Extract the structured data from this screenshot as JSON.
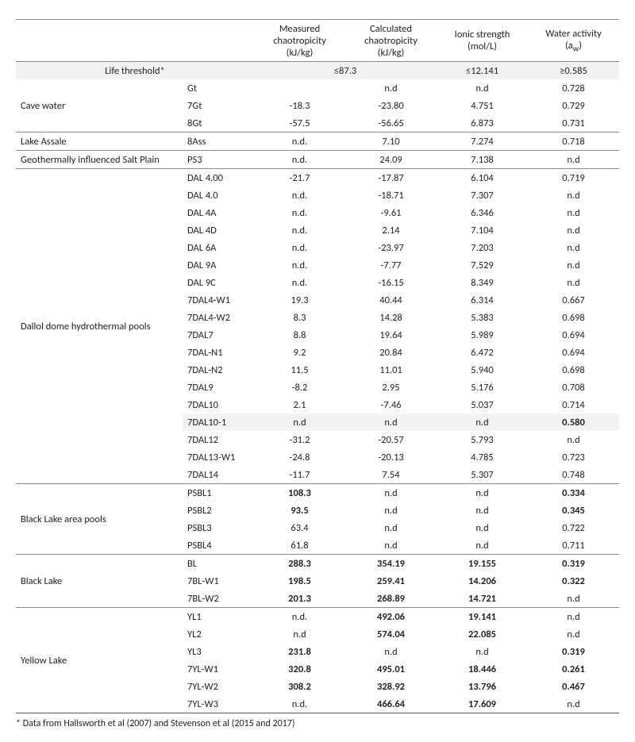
{
  "columns": [
    {
      "label_line1": "Measured",
      "label_line2": "chaotropicity",
      "label_line3": "(kJ/kg)"
    },
    {
      "label_line1": "Calculated",
      "label_line2": "chaotropicity",
      "label_line3": "(kJ/kg)"
    },
    {
      "label_line1": "Ionic strength",
      "label_line2": "(mol/L)",
      "label_line3": ""
    },
    {
      "label_line1": "Water activity",
      "label_line2": "(a",
      "label_line3": "",
      "sub": "w",
      "tail": ")"
    }
  ],
  "threshold": {
    "label": "Life threshold*",
    "chaotropicity": "≤87.3",
    "ionic": "≤12.141",
    "aw": "≥0.585"
  },
  "groups": [
    {
      "site": "Cave water",
      "rows": [
        {
          "s": "Gt",
          "v": [
            "",
            "n.d",
            "n.d",
            "0.728"
          ]
        },
        {
          "s": "7Gt",
          "v": [
            "-18.3",
            "-23.80",
            "4.751",
            "0.729"
          ]
        },
        {
          "s": "8Gt",
          "v": [
            "-57.5",
            "-56.65",
            "6.873",
            "0.731"
          ]
        }
      ]
    },
    {
      "site": "Lake Assale",
      "rows": [
        {
          "s": "8Ass",
          "v": [
            "n.d.",
            "7.10",
            "7.274",
            "0.718"
          ]
        }
      ]
    },
    {
      "site": "Geothermally influenced Salt Plain",
      "rows": [
        {
          "s": "PS3",
          "v": [
            "n.d.",
            "24.09",
            "7.138",
            "n.d"
          ]
        }
      ]
    },
    {
      "site": "Dallol dome hydrothermal pools",
      "rows": [
        {
          "s": "DAL 4.00",
          "v": [
            "-21.7",
            "-17.87",
            "6.104",
            "0.719"
          ]
        },
        {
          "s": "DAL 4.0",
          "v": [
            "n.d.",
            "-18.71",
            "7.307",
            "n.d"
          ]
        },
        {
          "s": "DAL 4A",
          "v": [
            "n.d.",
            "-9.61",
            "6.346",
            "n.d"
          ]
        },
        {
          "s": "DAL 4D",
          "v": [
            "n.d.",
            "2.14",
            "7.104",
            "n.d"
          ]
        },
        {
          "s": "DAL 6A",
          "v": [
            "n.d.",
            "-23.97",
            "7.203",
            "n.d"
          ]
        },
        {
          "s": "DAL 9A",
          "v": [
            "n.d.",
            "-7.77",
            "7.529",
            "n.d"
          ]
        },
        {
          "s": "DAL 9C",
          "v": [
            "n.d.",
            "-16.15",
            "8.349",
            "n.d"
          ]
        },
        {
          "s": "7DAL4-W1",
          "v": [
            "19.3",
            "40.44",
            "6.314",
            "0.667"
          ]
        },
        {
          "s": "7DAL4-W2",
          "v": [
            "8.3",
            "14.28",
            "5.383",
            "0.698"
          ]
        },
        {
          "s": "7DAL7",
          "v": [
            "8.8",
            "19.64",
            "5.989",
            "0.694"
          ]
        },
        {
          "s": "7DAL-N1",
          "v": [
            "9.2",
            "20.84",
            "6.472",
            "0.694"
          ]
        },
        {
          "s": "7DAL-N2",
          "v": [
            "11.5",
            "11.01",
            "5.940",
            "0.698"
          ]
        },
        {
          "s": "7DAL9",
          "v": [
            "-8.2",
            "2.95",
            "5.176",
            "0.708"
          ]
        },
        {
          "s": "7DAL10",
          "v": [
            "2.1",
            "-7.46",
            "5.037",
            "0.714"
          ]
        },
        {
          "s": "7DAL10-1",
          "v": [
            "n.d",
            "n.d",
            "n.d",
            "0.580"
          ],
          "shade": true,
          "bold_cols": [
            3
          ]
        },
        {
          "s": "7DAL12",
          "v": [
            "-31.2",
            "-20.57",
            "5.793",
            "n.d"
          ]
        },
        {
          "s": "7DAL13-W1",
          "v": [
            "-24.8",
            "-20.13",
            "4.785",
            "0.723"
          ]
        },
        {
          "s": "7DAL14",
          "v": [
            "-11.7",
            "7.54",
            "5.307",
            "0.748"
          ]
        }
      ]
    },
    {
      "site": "Black Lake area pools",
      "rows": [
        {
          "s": "PSBL1",
          "v": [
            "108.3",
            "n.d",
            "n.d",
            "0.334"
          ],
          "bold_cols": [
            0,
            3
          ]
        },
        {
          "s": "PSBL2",
          "v": [
            "93.5",
            "n.d",
            "n.d",
            "0.345"
          ],
          "bold_cols": [
            0,
            3
          ]
        },
        {
          "s": "PSBL3",
          "v": [
            "63.4",
            "n.d",
            "n.d",
            "0.722"
          ]
        },
        {
          "s": "PSBL4",
          "v": [
            "61.8",
            "n.d",
            "n.d",
            "0.711"
          ]
        }
      ]
    },
    {
      "site": "Black Lake",
      "rows": [
        {
          "s": "BL",
          "v": [
            "288.3",
            "354.19",
            "19.155",
            "0.319"
          ],
          "bold_cols": [
            0,
            1,
            2,
            3
          ]
        },
        {
          "s": "7BL-W1",
          "v": [
            "198.5",
            "259.41",
            "14.206",
            "0.322"
          ],
          "bold_cols": [
            0,
            1,
            2,
            3
          ]
        },
        {
          "s": "7BL-W2",
          "v": [
            "201.3",
            "268.89",
            "14.721",
            "n.d"
          ],
          "bold_cols": [
            0,
            1,
            2
          ]
        }
      ]
    },
    {
      "site": "Yellow Lake",
      "rows": [
        {
          "s": "YL1",
          "v": [
            "n.d.",
            "492.06",
            "19.141",
            "n.d"
          ],
          "bold_cols": [
            1,
            2
          ]
        },
        {
          "s": "YL2",
          "v": [
            "n.d",
            "574.04",
            "22.085",
            "n.d"
          ],
          "bold_cols": [
            1,
            2
          ]
        },
        {
          "s": "YL3",
          "v": [
            "231.8",
            "n.d",
            "n.d",
            "0.319"
          ],
          "bold_cols": [
            0,
            3
          ]
        },
        {
          "s": "7YL-W1",
          "v": [
            "320.8",
            "495.01",
            "18.446",
            "0.261"
          ],
          "bold_cols": [
            0,
            1,
            2,
            3
          ]
        },
        {
          "s": "7YL-W2",
          "v": [
            "308.2",
            "328.92",
            "13.796",
            "0.467"
          ],
          "bold_cols": [
            0,
            1,
            2,
            3
          ]
        },
        {
          "s": "7YL-W3",
          "v": [
            "n.d.",
            "466.64",
            "17.609",
            "n.d"
          ],
          "bold_cols": [
            1,
            2
          ]
        }
      ]
    }
  ],
  "footnote": "* Data from Hallsworth et al (2007) and Stevenson et al (2015 and 2017)"
}
